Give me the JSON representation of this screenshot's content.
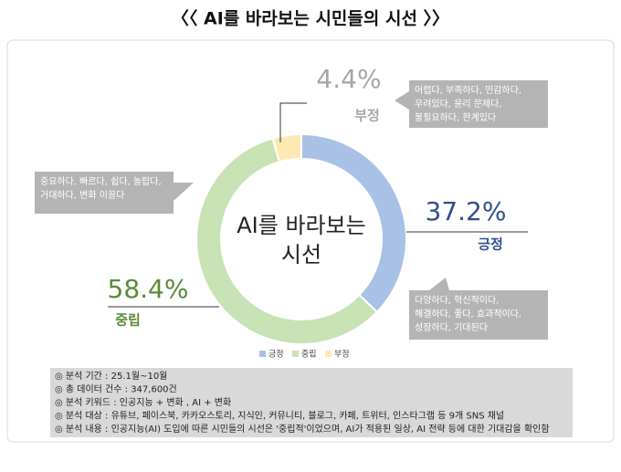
{
  "chart_data": {
    "type": "pie",
    "donut": true,
    "title": "〈〈 AI를 바라보는 시민들의 시선 〉〉",
    "center_text": [
      "AI를 바라보는",
      "시선"
    ],
    "categories": [
      "긍정",
      "중립",
      "부정"
    ],
    "values": [
      37.2,
      58.4,
      4.4
    ],
    "value_labels": [
      "37.2%",
      "58.4%",
      "4.4%"
    ],
    "colors": [
      "#a9c1e6",
      "#c8e2b5",
      "#fdeab3"
    ],
    "label_colors": [
      "#2e4f8c",
      "#5b8a37",
      "#a6a6a6"
    ],
    "keywords": [
      [
        "다양하다, 혁신적이다,",
        "해결하다, 좋다, 효과적이다,",
        "성장하다, 기대된다"
      ],
      [
        "중요하다, 빠르다, 쉽다, 놀랍다,",
        "거대하다, 변화 이끌다"
      ],
      [
        "어렵다, 부족하다, 민감하다,",
        "우려있다, 윤리 문제다,",
        "불필요하다, 한계있다"
      ]
    ],
    "legend": true,
    "notes": [
      "◎ 분석 기간 : 25.1월~10월",
      "◎ 총 데이터 건수 : 347,600건",
      "◎ 분석 키워드 : 인공지능 + 변화 , AI + 변화",
      "◎ 분석 대상 : 유튜브, 페이스북, 카카오스토리, 지식인, 커뮤니티, 블로그, 카페, 트위터, 인스타그램 등 9개 SNS 채널",
      "◎ 분석 내용 : 인공지능(AI) 도입에 따른 시민들의 시선은 '중립적'이었으며, AI가 적용된 일상, AI 전략 등에 대한 기대감을 확인함"
    ]
  }
}
